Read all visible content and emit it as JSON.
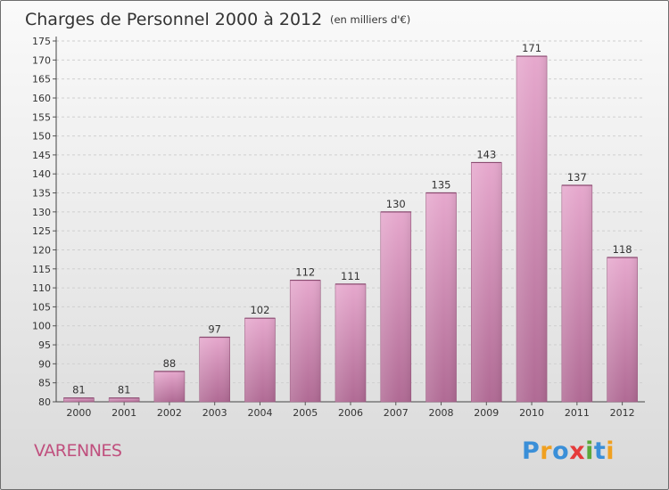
{
  "chart_data": {
    "type": "bar",
    "title": "Charges de Personnel 2000 à 2012",
    "subtitle": "(en milliers d'€)",
    "categories": [
      "2000",
      "2001",
      "2002",
      "2003",
      "2004",
      "2005",
      "2006",
      "2007",
      "2008",
      "2009",
      "2010",
      "2011",
      "2012"
    ],
    "values": [
      81,
      81,
      88,
      97,
      102,
      112,
      111,
      130,
      135,
      143,
      171,
      137,
      118
    ],
    "ylim": [
      80,
      175
    ],
    "ytick_step": 5,
    "grid": true,
    "bar_color": "#d98fb8"
  },
  "place_name": "VARENNES",
  "logo": {
    "text": "Proxiti",
    "letter_colors": [
      "#3a8fd8",
      "#f0a020",
      "#3a8fd8",
      "#e53b3b",
      "#5aa83a",
      "#3a8fd8",
      "#f0a020"
    ]
  }
}
